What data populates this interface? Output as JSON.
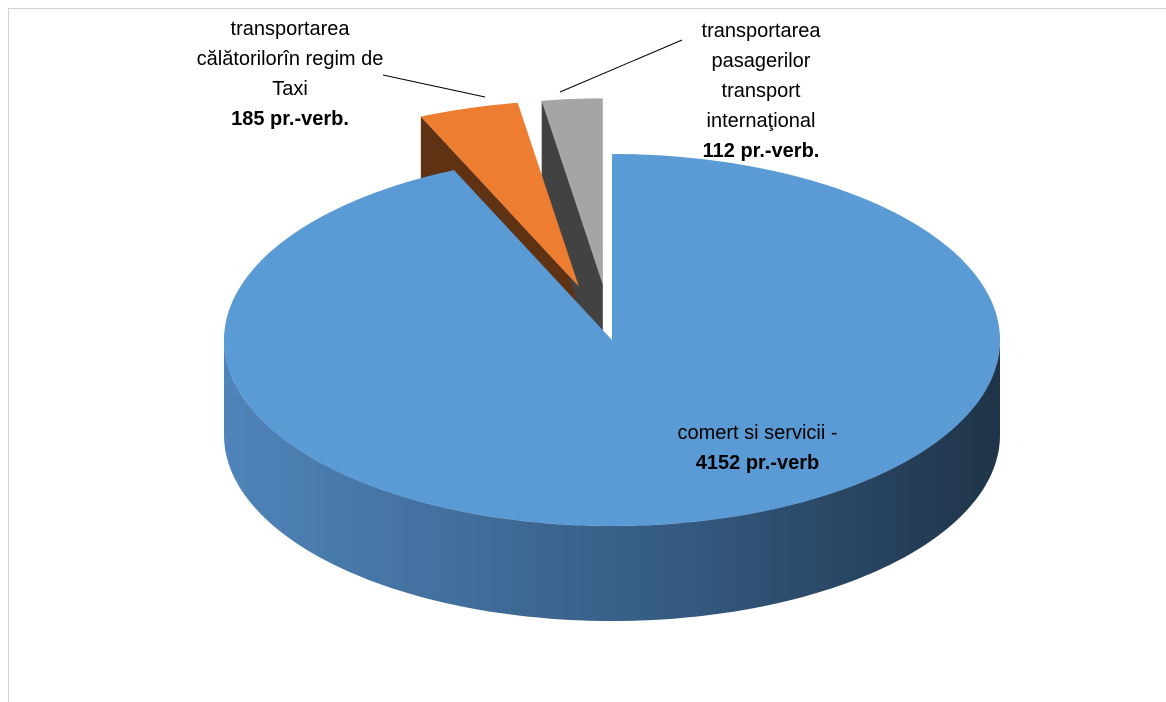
{
  "chart_data": {
    "type": "pie",
    "categories": [
      "comert si servicii -",
      "transportarea călătorilorîn  regim de Taxi",
      "transportarea pasagerilor transport internaţional"
    ],
    "values": [
      4152,
      185,
      112
    ],
    "value_labels": [
      "4152 pr.-verb",
      "185 pr.-verb.",
      "112 pr.-verb."
    ],
    "colors": [
      "#5b9bd5",
      "#ed7d31",
      "#a5a5a5"
    ],
    "explode": [
      false,
      true,
      true
    ]
  }
}
